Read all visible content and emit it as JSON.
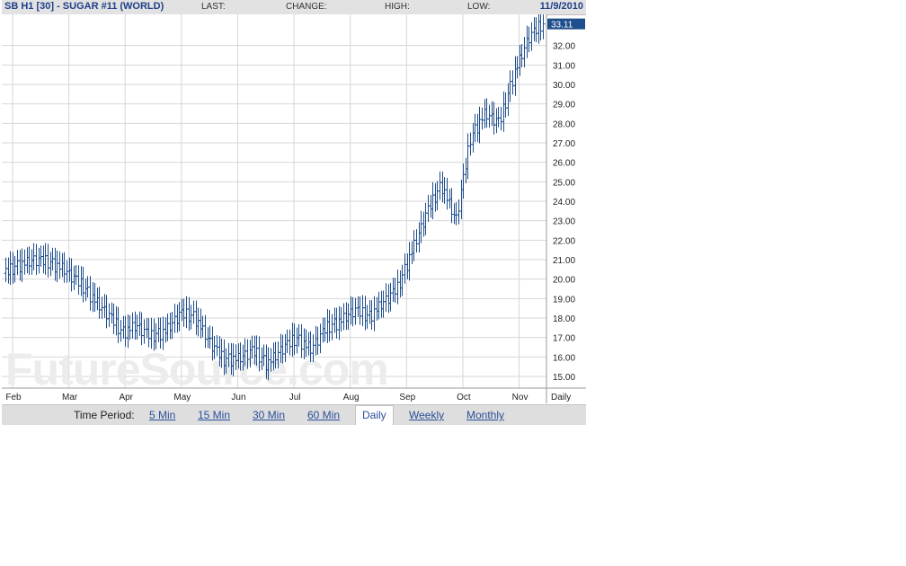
{
  "header": {
    "symbol": "SB H1 [30] - SUGAR #11 (WORLD)",
    "last_label": "LAST:",
    "change_label": "CHANGE:",
    "high_label": "HIGH:",
    "low_label": "LOW:",
    "date": "11/9/2010"
  },
  "watermark": "FutureSource.com",
  "toolbar": {
    "label": "Time Period:",
    "options": [
      "5 Min",
      "15 Min",
      "30 Min",
      "60 Min",
      "Daily",
      "Weekly",
      "Monthly"
    ],
    "selected": "Daily"
  },
  "colors": {
    "bar": "#1f4e8c",
    "last_badge": "#1f4e8c",
    "grid": "#d6d6d6",
    "header_text": "#1f3f88"
  },
  "chart_data": {
    "type": "ohlc",
    "series_label": "SB H1 [30] - SUGAR #11 (WORLD)",
    "x_axis_label": "Daily",
    "months": [
      "Feb",
      "Mar",
      "Apr",
      "May",
      "Jun",
      "Jul",
      "Aug",
      "Sep",
      "Oct",
      "Nov"
    ],
    "yticks": [
      15,
      16,
      17,
      18,
      19,
      20,
      21,
      22,
      23,
      24,
      25,
      26,
      27,
      28,
      29,
      30,
      31,
      32
    ],
    "ylim": [
      14.4,
      33.6
    ],
    "last_value": "33.11",
    "grid": true,
    "approx_closes": [
      20.3,
      20.7,
      21.0,
      20.8,
      20.5,
      19.8,
      19.0,
      18.2,
      17.2,
      17.6,
      17.0,
      17.3,
      18.2,
      18.0,
      16.8,
      15.8,
      15.9,
      16.3,
      15.6,
      16.4,
      16.9,
      16.4,
      17.4,
      17.8,
      18.4,
      18.0,
      18.8,
      19.5,
      21.5,
      23.4,
      24.8,
      23.0,
      27.2,
      28.5,
      28.0,
      30.5,
      32.4,
      33.1
    ],
    "pattern": [
      0.35,
      -0.2,
      0.5,
      -0.35,
      0.15,
      0.45,
      -0.45,
      0.25,
      -0.1,
      0.4,
      -0.3,
      0.05,
      0.3,
      -0.4,
      0.2
    ]
  }
}
